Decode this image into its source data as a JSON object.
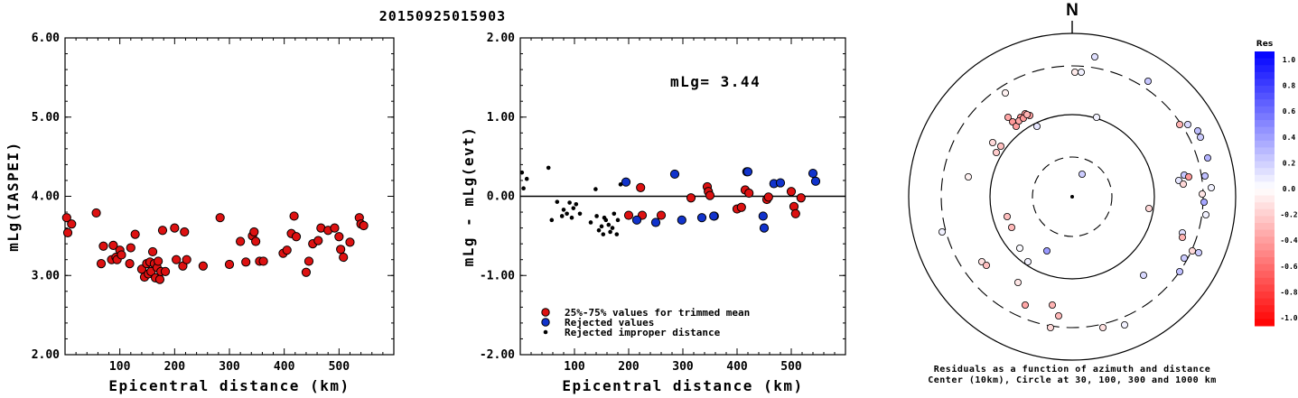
{
  "title": "20150925015903",
  "chart_data": [
    {
      "type": "scatter",
      "ylabel": "mLg(IASPEI)",
      "xlabel": "Epicentral distance (km)",
      "xlim": [
        0,
        600
      ],
      "ylim": [
        2.0,
        6.0
      ],
      "xticks": [
        "100",
        "200",
        "300",
        "400",
        "500"
      ],
      "yticks": [
        "2.00",
        "3.00",
        "4.00",
        "5.00",
        "6.00"
      ],
      "series": [
        {
          "color": "#dd1111",
          "x": [
            3,
            5,
            12,
            57,
            66,
            70,
            85,
            88,
            93,
            95,
            100,
            103,
            118,
            120,
            128,
            140,
            145,
            149,
            152,
            155,
            157,
            160,
            163,
            165,
            168,
            170,
            173,
            175,
            178,
            183,
            200,
            203,
            215,
            218,
            222,
            252,
            283,
            300,
            320,
            330,
            342,
            345,
            348,
            355,
            362,
            398,
            405,
            413,
            418,
            422,
            440,
            445,
            452,
            462,
            467,
            480,
            492,
            500,
            503,
            508,
            520,
            537,
            540,
            545
          ],
          "y": [
            3.73,
            3.54,
            3.65,
            3.79,
            3.15,
            3.37,
            3.2,
            3.38,
            3.23,
            3.2,
            3.32,
            3.26,
            3.15,
            3.35,
            3.52,
            3.08,
            2.98,
            3.15,
            3.02,
            3.17,
            3.05,
            3.3,
            3.15,
            2.97,
            3.1,
            3.18,
            2.95,
            3.05,
            3.57,
            3.05,
            3.6,
            3.2,
            3.12,
            3.55,
            3.2,
            3.12,
            3.73,
            3.14,
            3.43,
            3.17,
            3.5,
            3.55,
            3.43,
            3.18,
            3.18,
            3.28,
            3.32,
            3.53,
            3.75,
            3.49,
            3.04,
            3.18,
            3.4,
            3.44,
            3.6,
            3.57,
            3.6,
            3.49,
            3.33,
            3.23,
            3.42,
            3.73,
            3.65,
            3.63
          ]
        }
      ]
    },
    {
      "type": "scatter",
      "ylabel": "mLg - mLg(evt)",
      "xlabel": "Epicentral distance (km)",
      "xlim": [
        0,
        600
      ],
      "ylim": [
        -2.0,
        2.0
      ],
      "xticks": [
        "100",
        "200",
        "300",
        "400",
        "500"
      ],
      "yticks": [
        "-2.00",
        "-1.00",
        "0.00",
        "1.00",
        "2.00"
      ],
      "annotation": "mLg= 3.44",
      "hline": 0.0,
      "legend": [
        {
          "label": "25%-75% values for trimmed mean",
          "color": "#dd1111"
        },
        {
          "label": "Rejected values",
          "color": "#1133cc"
        },
        {
          "label": "Rejected improper distance",
          "color": "#000000"
        }
      ],
      "series": [
        {
          "name": "25%-75% values for trimmed mean",
          "color": "#dd1111",
          "x": [
            200,
            222,
            225,
            260,
            315,
            345,
            347,
            350,
            358,
            400,
            408,
            415,
            422,
            455,
            458,
            500,
            505,
            508,
            518
          ],
          "y": [
            -0.24,
            0.11,
            -0.24,
            -0.24,
            -0.02,
            0.12,
            0.06,
            0.01,
            -0.25,
            -0.16,
            -0.14,
            0.08,
            0.04,
            -0.04,
            -0.01,
            0.06,
            -0.13,
            -0.22,
            -0.02
          ]
        },
        {
          "name": "Rejected values",
          "color": "#1133cc",
          "x": [
            195,
            215,
            250,
            285,
            298,
            335,
            357,
            418,
            420,
            448,
            450,
            468,
            480,
            540,
            545
          ],
          "y": [
            0.18,
            -0.3,
            -0.33,
            0.28,
            -0.3,
            -0.27,
            -0.25,
            0.31,
            0.31,
            -0.25,
            -0.4,
            0.16,
            0.17,
            0.29,
            0.19
          ]
        },
        {
          "name": "Rejected improper distance",
          "color": "#000000",
          "x": [
            3,
            6,
            12,
            52,
            58,
            68,
            77,
            80,
            86,
            91,
            95,
            98,
            103,
            110,
            130,
            139,
            141,
            145,
            150,
            153,
            155,
            158,
            163,
            166,
            170,
            173,
            178,
            180,
            185
          ],
          "y": [
            0.3,
            0.1,
            0.22,
            0.36,
            -0.3,
            -0.07,
            -0.25,
            -0.17,
            -0.22,
            -0.08,
            -0.27,
            -0.15,
            -0.1,
            -0.22,
            -0.33,
            0.09,
            -0.25,
            -0.43,
            -0.38,
            -0.48,
            -0.27,
            -0.3,
            -0.36,
            -0.45,
            -0.4,
            -0.22,
            -0.48,
            -0.3,
            0.15
          ]
        }
      ]
    },
    {
      "type": "scatter",
      "subtype": "polar-residuals",
      "north_label": "N",
      "caption": [
        "Residuals as a function of azimuth and distance",
        "Center (10km), Circle at 30, 100, 300 and 1000 km"
      ],
      "colorbar_title": "Res",
      "colorbar_ticks": [
        "1.0",
        "0.8",
        "0.6",
        "0.4",
        "0.2",
        "0.0",
        "-0.2",
        "-0.4",
        "-0.6",
        "-0.8",
        "-1.0"
      ],
      "points": {
        "res": [
          0.12,
          -0.08,
          0.05,
          0.22,
          -0.05,
          -0.35,
          -0.4,
          -0.38,
          -0.42,
          -0.4,
          -0.38,
          -0.35,
          -0.4,
          -0.3,
          -0.15,
          -0.25,
          -0.2,
          0.1,
          0.05,
          -0.3,
          0.15,
          0.25,
          0.2,
          0.3,
          0.22,
          0.1,
          -0.15,
          -0.4,
          0.25,
          0.05,
          -0.1,
          0.05,
          0.2,
          -0.05,
          -0.25,
          -0.28,
          0.35,
          0.12,
          -0.3,
          -0.15,
          0.2,
          0.05,
          0.4,
          0.02,
          0.05,
          -0.12,
          -0.25,
          0.2,
          0.15,
          0.25,
          -0.1,
          -0.3,
          -0.28,
          -0.15,
          -0.12,
          0.05,
          -0.35,
          -0.15
        ],
        "x": [
          1212,
          1190,
          1197,
          1271,
          1113,
          1116,
          1121,
          1125,
          1130,
          1135,
          1140,
          1128,
          1133,
          1137,
          1099,
          1108,
          1103,
          1148,
          1214,
          1306,
          1315,
          1326,
          1329,
          1337,
          1311,
          1305,
          1310,
          1316,
          1334,
          1341,
          1331,
          1335,
          1198,
          1072,
          1115,
          1120,
          1333,
          1309,
          1309,
          1320,
          1327,
          1043,
          1159,
          1129,
          1138,
          1087,
          1092,
          1311,
          1266,
          1306,
          1127,
          1165,
          1172,
          1163,
          1221,
          1245,
          1135,
          1272
        ],
        "y": [
          63,
          80,
          80,
          90,
          103,
          130,
          135,
          140,
          130,
          126,
          128,
          134,
          131,
          127,
          158,
          162,
          169,
          140,
          130,
          138,
          138,
          145,
          152,
          175,
          194,
          200,
          204,
          196,
          195,
          208,
          215,
          238,
          193,
          196,
          240,
          252,
          224,
          258,
          263,
          278,
          280,
          257,
          278,
          275,
          290,
          290,
          294,
          286,
          305,
          301,
          313,
          338,
          350,
          363,
          363,
          360,
          338,
          231
        ]
      }
    }
  ]
}
